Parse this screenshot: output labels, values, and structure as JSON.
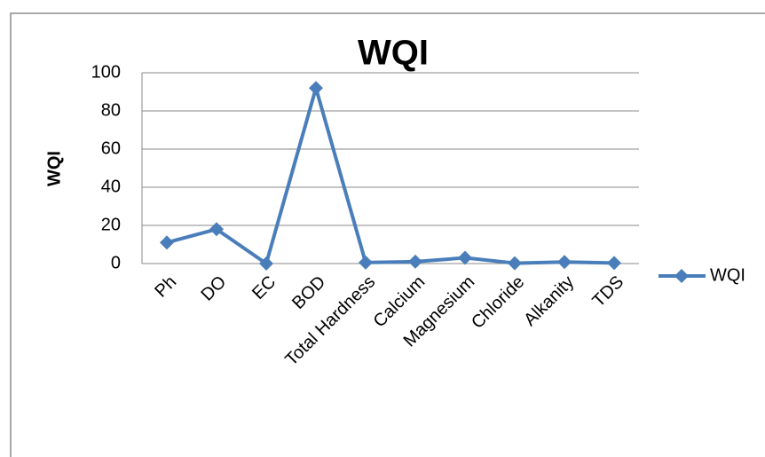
{
  "chart_data": {
    "type": "line",
    "title": "WQI",
    "y_label": "WQI",
    "categories": [
      "Ph",
      "DO",
      "EC",
      "BOD",
      "Total Hardness",
      "Calcium",
      "Magnesium",
      "Chloride",
      "Alkanity",
      "TDS"
    ],
    "series": [
      {
        "name": "WQI",
        "color": "#4a7ebb",
        "values": [
          11,
          18,
          0,
          92,
          0.5,
          1,
          3,
          0.2,
          0.8,
          0.3
        ]
      }
    ],
    "ylim": [
      0,
      100
    ],
    "yticks": [
      0,
      20,
      40,
      60,
      80,
      100
    ],
    "grid": true,
    "legend": "right"
  }
}
